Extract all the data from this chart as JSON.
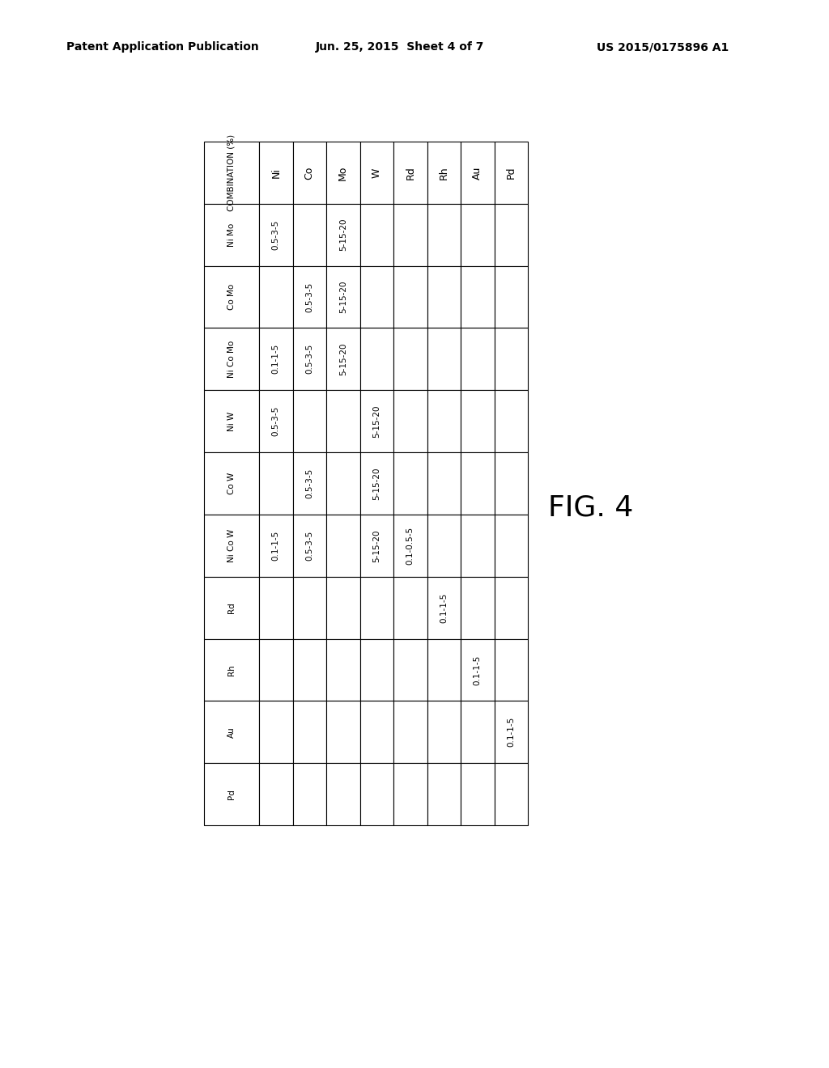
{
  "header_line1": "Patent Application Publication",
  "header_line2": "Jun. 25, 2015  Sheet 4 of 7",
  "header_line3": "US 2015/0175896 A1",
  "figure_label": "FIG. 4",
  "col_headers": [
    "COMBINATION (%)",
    "Ni Mo",
    "Co Mo",
    "Ni Co Mo",
    "Ni W",
    "Co W",
    "Ni Co W",
    "Rd",
    "Rh",
    "Au",
    "Pd"
  ],
  "row_headers": [
    "Ni",
    "Co",
    "Mo",
    "W",
    "Rd",
    "Rh",
    "Au",
    "Pd"
  ],
  "table_data": [
    [
      "0.5-3-5",
      "",
      "0.1-1-5",
      "0.5-3-5",
      "",
      "0.1-1-5",
      "",
      "",
      "",
      ""
    ],
    [
      "",
      "0.5-3-5",
      "0.5-3-5",
      "",
      "0.5-3-5",
      "0.5-3-5",
      "",
      "",
      "",
      ""
    ],
    [
      "5-15-20",
      "5-15-20",
      "5-15-20",
      "",
      "",
      "",
      "",
      "",
      "",
      ""
    ],
    [
      "",
      "",
      "",
      "5-15-20",
      "5-15-20",
      "5-15-20",
      "",
      "",
      "",
      ""
    ],
    [
      "",
      "",
      "",
      "",
      "",
      "0.1-0.5-5",
      "",
      "",
      "",
      ""
    ],
    [
      "",
      "",
      "",
      "",
      "",
      "",
      "0.1-1-5",
      "",
      "",
      ""
    ],
    [
      "",
      "",
      "",
      "",
      "",
      "",
      "",
      "0.1-1-5",
      "",
      ""
    ],
    [
      "",
      "",
      "",
      "",
      "",
      "",
      "",
      "",
      "0.1-1-5",
      ""
    ]
  ],
  "background_color": "#ffffff",
  "text_color": "#000000",
  "border_color": "#000000",
  "font_size_header": 9,
  "font_size_cell": 8.5
}
